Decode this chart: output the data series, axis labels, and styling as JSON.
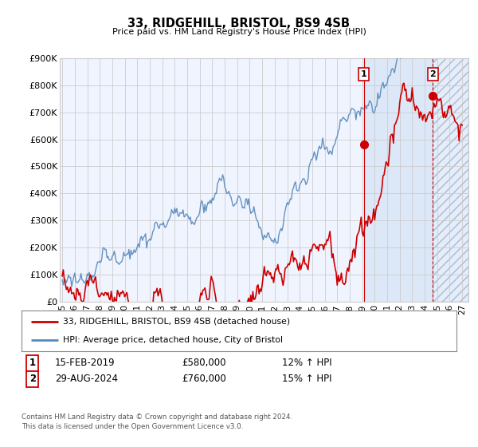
{
  "title": "33, RIDGEHILL, BRISTOL, BS9 4SB",
  "subtitle": "Price paid vs. HM Land Registry's House Price Index (HPI)",
  "ylabel_ticks": [
    "£0",
    "£100K",
    "£200K",
    "£300K",
    "£400K",
    "£500K",
    "£600K",
    "£700K",
    "£800K",
    "£900K"
  ],
  "ylim": [
    0,
    900000
  ],
  "xlim_start": 1994.8,
  "xlim_end": 2027.5,
  "marker1_year": 2019.12,
  "marker1_value": 580000,
  "marker2_year": 2024.66,
  "marker2_value": 760000,
  "legend_label_red": "33, RIDGEHILL, BRISTOL, BS9 4SB (detached house)",
  "legend_label_blue": "HPI: Average price, detached house, City of Bristol",
  "annotation1_label": "1",
  "annotation1_date": "15-FEB-2019",
  "annotation1_price": "£580,000",
  "annotation1_hpi": "12% ↑ HPI",
  "annotation2_label": "2",
  "annotation2_date": "29-AUG-2024",
  "annotation2_price": "£760,000",
  "annotation2_hpi": "15% ↑ HPI",
  "footer": "Contains HM Land Registry data © Crown copyright and database right 2024.\nThis data is licensed under the Open Government Licence v3.0.",
  "red_color": "#cc0000",
  "blue_color": "#5588bb",
  "grid_color": "#cccccc",
  "bg_color": "#ffffff",
  "plot_bg_color": "#f0f4ff",
  "shade1_color": "#dce8f8",
  "xtick_years": [
    1995,
    1996,
    1997,
    1998,
    1999,
    2000,
    2001,
    2002,
    2003,
    2004,
    2005,
    2006,
    2007,
    2008,
    2009,
    2010,
    2011,
    2012,
    2013,
    2014,
    2015,
    2016,
    2017,
    2018,
    2019,
    2020,
    2021,
    2022,
    2023,
    2024,
    2025,
    2026,
    2027
  ]
}
